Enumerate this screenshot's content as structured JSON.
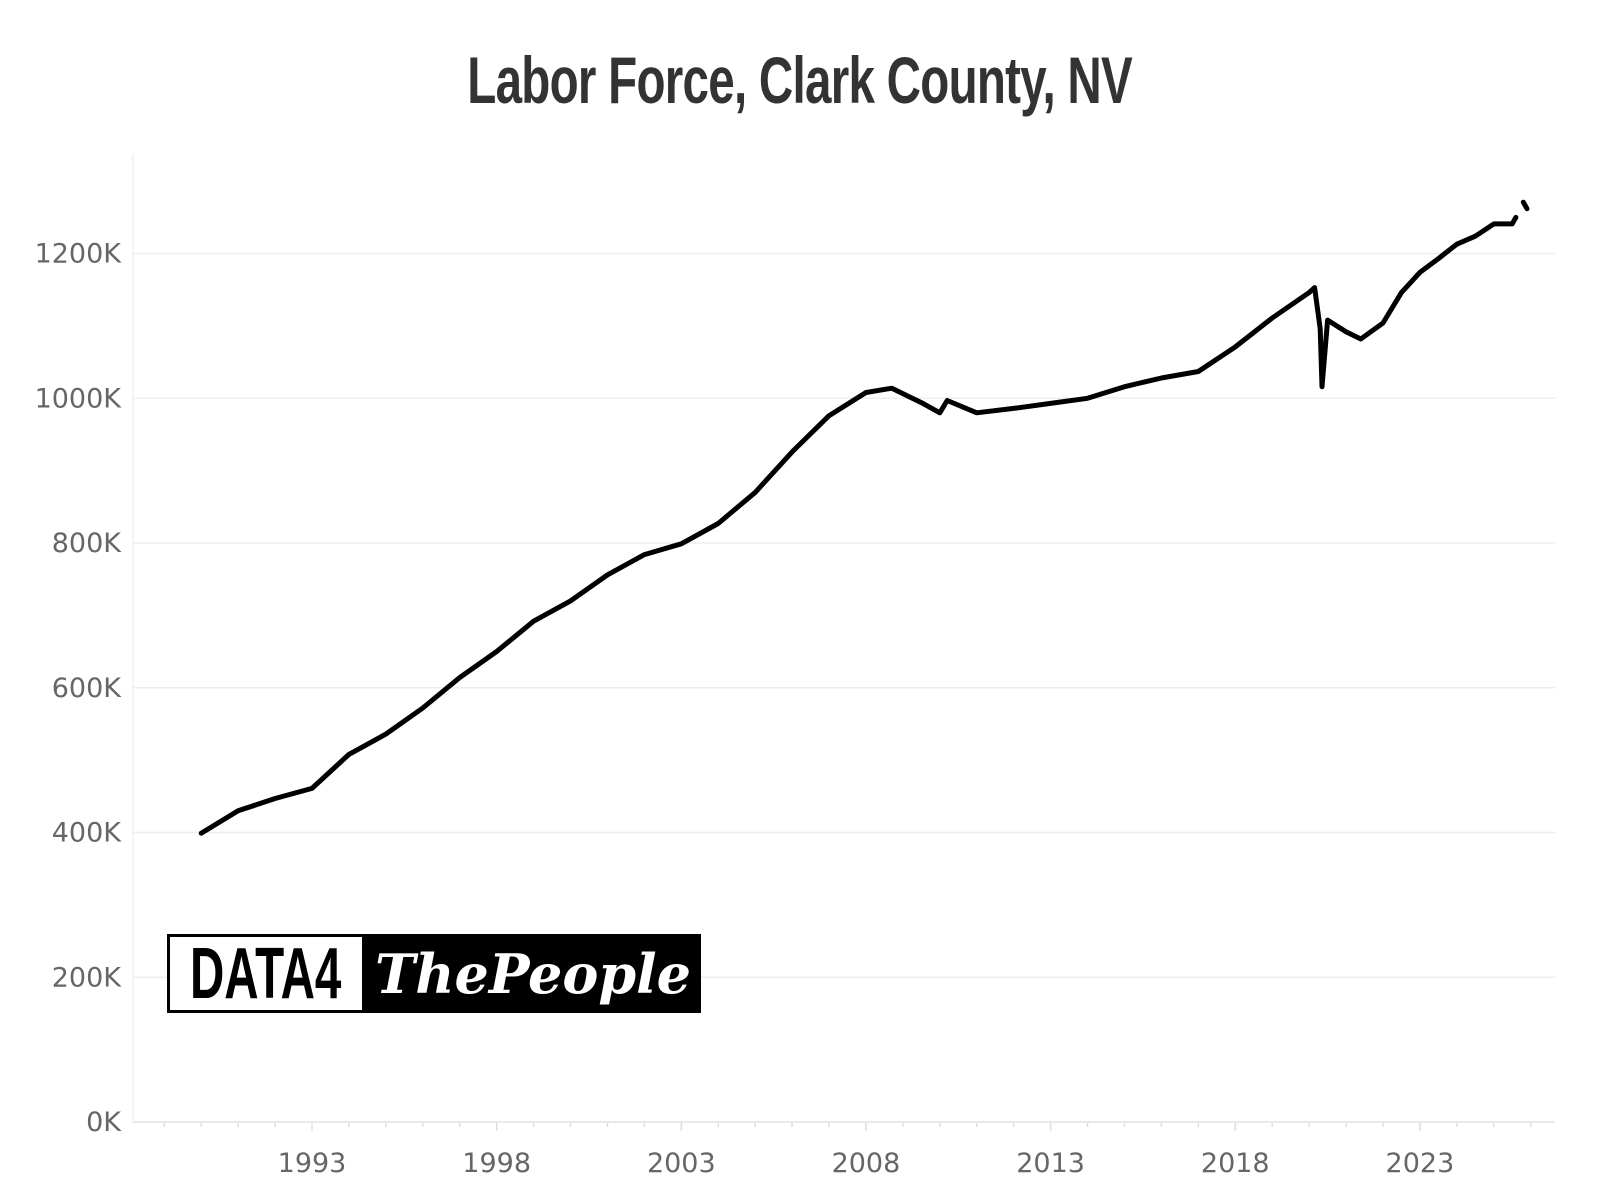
{
  "chart_data": {
    "type": "line",
    "title": "Labor Force, Clark County, NV",
    "xlabel": "",
    "ylabel": "",
    "xlim": [
      1988.3,
      2027
    ],
    "ylim": [
      -60,
      1380
    ],
    "x_ticks": [
      1993,
      1998,
      2003,
      2008,
      2013,
      2018,
      2023
    ],
    "y_ticks": [
      0,
      200,
      400,
      600,
      800,
      1000,
      1200
    ],
    "y_tick_labels": [
      "0K",
      "200K",
      "400K",
      "600K",
      "800K",
      "1000K",
      "1200K"
    ],
    "grid": "horizontal",
    "line_color": "#000000",
    "x": [
      1990.0,
      1991,
      1992,
      1993,
      1994,
      1995,
      1996,
      1997,
      1998,
      1999,
      2000,
      2001,
      2002,
      2003,
      2004,
      2005,
      2006,
      2007,
      2008,
      2008.7,
      2009.5,
      2010,
      2010.2,
      2011,
      2012,
      2013,
      2014,
      2015,
      2016,
      2017,
      2018,
      2019,
      2020.0,
      2020.15,
      2020.3,
      2020.35,
      2020.5,
      2021,
      2021.4,
      2022,
      2022.5,
      2023,
      2023.5,
      2024,
      2024.5,
      2025,
      2025.5,
      2025.6,
      2025.7,
      2025.8,
      2025.9
    ],
    "values": [
      399,
      430,
      447,
      461,
      508,
      536,
      572,
      614,
      650,
      692,
      720,
      756,
      784,
      799,
      827,
      870,
      926,
      976,
      1008,
      1014,
      994,
      980,
      997,
      980,
      986,
      993,
      1000,
      1016,
      1028,
      1037,
      1071,
      1111,
      1146,
      1153,
      1096,
      1016,
      1108,
      1092,
      1082,
      1104,
      1146,
      1174,
      1193,
      1213,
      1224,
      1241,
      1241,
      1250,
      null,
      1271,
      1262
    ],
    "value_unit": "K"
  },
  "logo": {
    "text": "DATA4ThePeople",
    "part1": "DATA4",
    "part2": "ThePeople"
  }
}
